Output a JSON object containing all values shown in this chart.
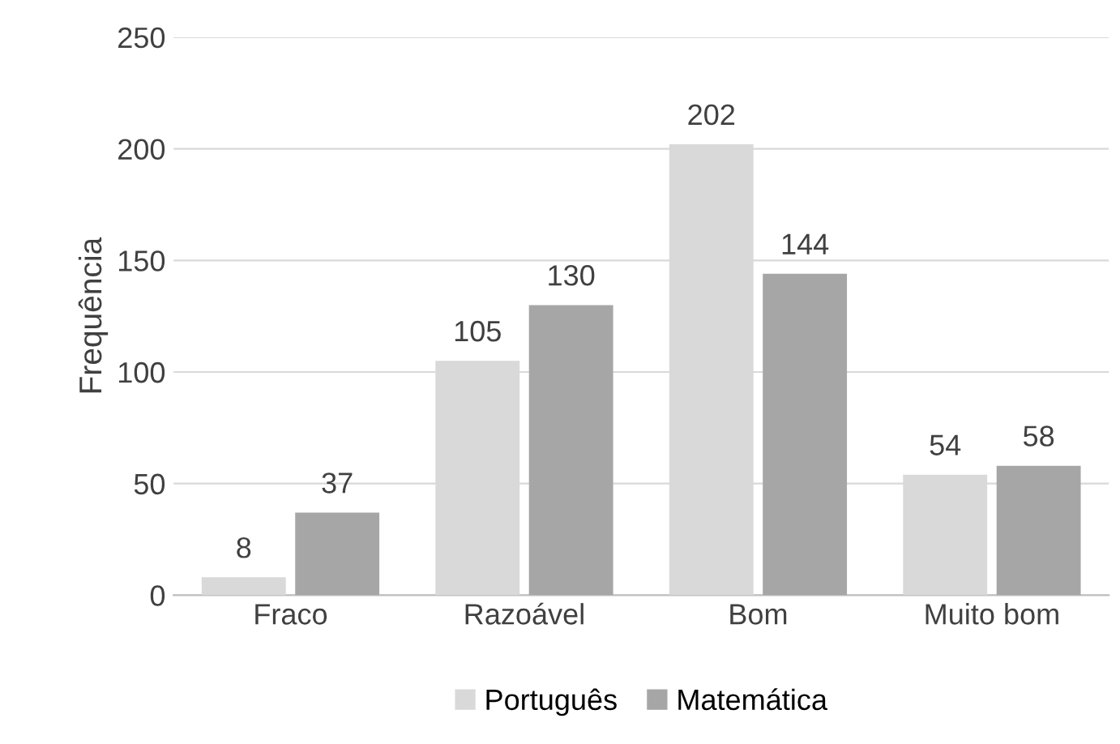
{
  "chart_data": {
    "type": "bar",
    "ylabel": "Frequência",
    "categories": [
      "Fraco",
      "Razoável",
      "Bom",
      "Muito bom"
    ],
    "series": [
      {
        "name": "Português",
        "color": "#d9d9d9",
        "values": [
          8,
          105,
          202,
          54
        ]
      },
      {
        "name": "Matemática",
        "color": "#a6a6a6",
        "values": [
          37,
          130,
          144,
          58
        ]
      }
    ],
    "ylim": [
      0,
      250
    ],
    "yticks": [
      0,
      50,
      100,
      150,
      200,
      250
    ],
    "grid": "y",
    "legend": "bottom",
    "data_labels": true
  }
}
